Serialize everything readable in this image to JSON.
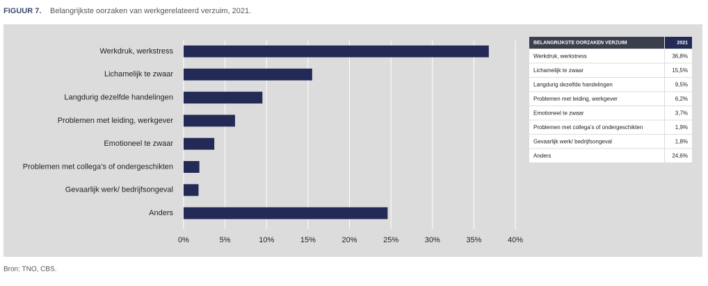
{
  "figure_label": "FIGUUR 7.",
  "chart_data": {
    "type": "hbar",
    "title": "Belangrijkste oorzaken van werkgerelateerd verzuim, 2021.",
    "categories": [
      "Werkdruk, werkstress",
      "Lichamelijk te zwaar",
      "Langdurig dezelfde handelingen",
      "Problemen met leiding, werkgever",
      "Emotioneel te zwaar",
      "Problemen met collega’s of ondergeschikten",
      "Gevaarlijk werk/ bedrijfsongeval",
      "Anders"
    ],
    "values": [
      36.8,
      15.5,
      9.5,
      6.2,
      3.7,
      1.9,
      1.8,
      24.6
    ],
    "value_labels": [
      "36,8%",
      "15,5%",
      "9,5%",
      "6,2%",
      "3,7%",
      "1,9%",
      "1,8%",
      "24,6%"
    ],
    "color": "#232a55",
    "xlim": [
      0,
      40
    ],
    "xticks": [
      {
        "value": 0,
        "label": "0%"
      },
      {
        "value": 5,
        "label": "5%"
      },
      {
        "value": 10,
        "label": "10%"
      },
      {
        "value": 15,
        "label": "15%"
      },
      {
        "value": 20,
        "label": "20%"
      },
      {
        "value": 25,
        "label": "25%"
      },
      {
        "value": 30,
        "label": "30%"
      },
      {
        "value": 35,
        "label": "35%"
      },
      {
        "value": 40,
        "label": "40%"
      }
    ],
    "grid": true
  },
  "table": {
    "columns": [
      "BELANGRIJKSTE OORZAKEN VERZUIM",
      "2021"
    ]
  },
  "source": "Bron: TNO, CBS."
}
